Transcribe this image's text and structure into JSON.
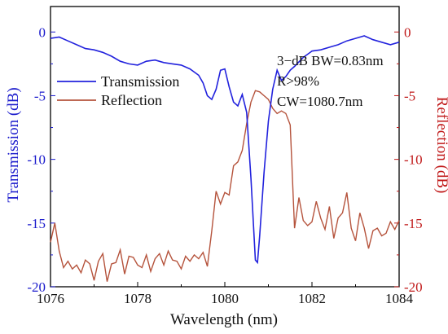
{
  "chart_data": {
    "type": "line",
    "xlabel": "Wavelength (nm)",
    "ylabel_left": "Transmission (dB)",
    "ylabel_right": "Reflection (dB)",
    "xlim": [
      1076,
      1084
    ],
    "ylim_left": [
      -20,
      2
    ],
    "ylim_right": [
      -20,
      2
    ],
    "x_ticks": [
      "1076",
      "1078",
      "1080",
      "1082",
      "1084"
    ],
    "y_ticks_left": [
      "0",
      "-5",
      "-10",
      "-15",
      "-20"
    ],
    "y_ticks_right": [
      "0",
      "-5",
      "-10",
      "-15",
      "-20"
    ],
    "legend_placement": "upper-left",
    "annotations": [
      "3−dB BW=0.83nm",
      "R>98%",
      "CW=1080.7nm"
    ],
    "colors": {
      "transmission": "#2222dd",
      "reflection": "#b5533c",
      "left_axis": "#1a1acc",
      "right_axis": "#c01818",
      "frame": "#000000"
    },
    "series": [
      {
        "name": "Transmission",
        "axis": "left",
        "x": [
          1076.0,
          1076.2,
          1076.4,
          1076.6,
          1076.8,
          1077.0,
          1077.2,
          1077.4,
          1077.6,
          1077.8,
          1078.0,
          1078.2,
          1078.4,
          1078.6,
          1078.8,
          1079.0,
          1079.2,
          1079.4,
          1079.5,
          1079.6,
          1079.7,
          1079.8,
          1079.9,
          1080.0,
          1080.1,
          1080.2,
          1080.3,
          1080.4,
          1080.5,
          1080.6,
          1080.7,
          1080.75,
          1080.8,
          1080.9,
          1081.0,
          1081.1,
          1081.2,
          1081.3,
          1081.4,
          1081.5,
          1081.6,
          1081.8,
          1082.0,
          1082.2,
          1082.4,
          1082.6,
          1082.8,
          1083.0,
          1083.2,
          1083.4,
          1083.6,
          1083.8,
          1084.0
        ],
        "y": [
          -0.5,
          -0.4,
          -0.7,
          -1.0,
          -1.3,
          -1.4,
          -1.6,
          -1.9,
          -2.3,
          -2.5,
          -2.6,
          -2.3,
          -2.2,
          -2.4,
          -2.5,
          -2.6,
          -2.9,
          -3.4,
          -4.0,
          -5.0,
          -5.3,
          -4.5,
          -3.0,
          -2.9,
          -4.3,
          -5.5,
          -5.8,
          -4.9,
          -6.3,
          -11.5,
          -17.9,
          -18.1,
          -16.0,
          -11.0,
          -7.0,
          -4.5,
          -3.0,
          -3.8,
          -3.5,
          -3.0,
          -2.7,
          -2.0,
          -1.5,
          -1.4,
          -1.2,
          -1.0,
          -0.7,
          -0.5,
          -0.3,
          -0.6,
          -0.8,
          -1.0,
          -0.8
        ]
      },
      {
        "name": "Reflection",
        "axis": "right",
        "x": [
          1076.0,
          1076.1,
          1076.2,
          1076.3,
          1076.4,
          1076.5,
          1076.6,
          1076.7,
          1076.8,
          1076.9,
          1077.0,
          1077.1,
          1077.2,
          1077.3,
          1077.4,
          1077.5,
          1077.6,
          1077.7,
          1077.8,
          1077.9,
          1078.0,
          1078.1,
          1078.2,
          1078.3,
          1078.4,
          1078.5,
          1078.6,
          1078.7,
          1078.8,
          1078.9,
          1079.0,
          1079.1,
          1079.2,
          1079.3,
          1079.4,
          1079.5,
          1079.6,
          1079.7,
          1079.8,
          1079.9,
          1080.0,
          1080.1,
          1080.2,
          1080.3,
          1080.4,
          1080.5,
          1080.6,
          1080.7,
          1080.8,
          1080.9,
          1081.0,
          1081.1,
          1081.2,
          1081.3,
          1081.4,
          1081.5,
          1081.6,
          1081.7,
          1081.8,
          1081.9,
          1082.0,
          1082.1,
          1082.2,
          1082.3,
          1082.4,
          1082.5,
          1082.6,
          1082.7,
          1082.8,
          1082.9,
          1083.0,
          1083.1,
          1083.2,
          1083.3,
          1083.4,
          1083.5,
          1083.6,
          1083.7,
          1083.8,
          1083.9,
          1084.0
        ],
        "y": [
          -16.5,
          -15.0,
          -17.2,
          -18.5,
          -18.0,
          -18.6,
          -18.3,
          -18.9,
          -17.9,
          -18.2,
          -19.5,
          -18.0,
          -17.4,
          -19.6,
          -18.2,
          -18.1,
          -17.1,
          -19.0,
          -17.6,
          -17.7,
          -18.3,
          -18.5,
          -17.5,
          -18.8,
          -17.8,
          -17.4,
          -18.3,
          -17.2,
          -17.9,
          -18.0,
          -18.6,
          -17.6,
          -18.0,
          -17.5,
          -17.8,
          -17.3,
          -18.4,
          -15.6,
          -12.5,
          -13.5,
          -12.6,
          -12.8,
          -10.5,
          -10.2,
          -9.3,
          -7.2,
          -5.5,
          -4.6,
          -4.7,
          -5.0,
          -5.3,
          -6.0,
          -6.4,
          -6.2,
          -6.4,
          -7.3,
          -15.4,
          -13.0,
          -14.8,
          -15.2,
          -14.9,
          -13.3,
          -14.6,
          -15.5,
          -13.7,
          -16.2,
          -14.6,
          -14.2,
          -12.6,
          -15.4,
          -16.4,
          -14.2,
          -15.4,
          -17.0,
          -15.6,
          -15.4,
          -16.0,
          -15.8,
          -14.9,
          -15.5,
          -14.8
        ]
      }
    ]
  }
}
